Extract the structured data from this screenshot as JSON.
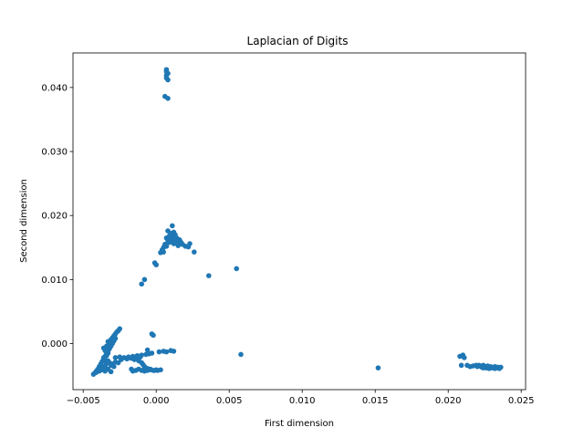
{
  "chart_data": {
    "type": "scatter",
    "title": "Laplacian of Digits",
    "xlabel": "First dimension",
    "ylabel": "Second dimension",
    "xlim": [
      -0.0057,
      0.0253
    ],
    "ylim": [
      -0.0072,
      0.0454
    ],
    "xticks": [
      -0.005,
      0.0,
      0.005,
      0.01,
      0.015,
      0.02,
      0.025
    ],
    "xtick_labels": [
      "−0.005",
      "0.000",
      "0.005",
      "0.010",
      "0.015",
      "0.020",
      "0.025"
    ],
    "yticks": [
      0.0,
      0.01,
      0.02,
      0.03,
      0.04
    ],
    "ytick_labels": [
      "0.000",
      "0.010",
      "0.020",
      "0.030",
      "0.040"
    ],
    "grid": false,
    "color": "#1f77b4",
    "points": [
      [
        0.0007,
        0.0428
      ],
      [
        0.0007,
        0.0425
      ],
      [
        0.0008,
        0.0422
      ],
      [
        0.0007,
        0.0419
      ],
      [
        0.0007,
        0.0415
      ],
      [
        0.0008,
        0.0412
      ],
      [
        0.0006,
        0.0386
      ],
      [
        0.0008,
        0.0383
      ],
      [
        0.0011,
        0.0184
      ],
      [
        0.0008,
        0.0176
      ],
      [
        0.001,
        0.0172
      ],
      [
        0.0012,
        0.0174
      ],
      [
        0.0013,
        0.017
      ],
      [
        0.0011,
        0.0168
      ],
      [
        0.0014,
        0.0165
      ],
      [
        0.0016,
        0.0162
      ],
      [
        0.0015,
        0.0159
      ],
      [
        0.0018,
        0.0155
      ],
      [
        0.0013,
        0.016
      ],
      [
        0.0012,
        0.0156
      ],
      [
        0.001,
        0.0162
      ],
      [
        0.0009,
        0.0158
      ],
      [
        0.0007,
        0.0165
      ],
      [
        0.0008,
        0.016
      ],
      [
        0.0006,
        0.0155
      ],
      [
        0.0005,
        0.015
      ],
      [
        0.0004,
        0.0146
      ],
      [
        0.0003,
        0.0142
      ],
      [
        0.0005,
        0.0143
      ],
      [
        0.0007,
        0.0152
      ],
      [
        0.0009,
        0.0168
      ],
      [
        0.0011,
        0.0165
      ],
      [
        0.0017,
        0.0158
      ],
      [
        0.002,
        0.0152
      ],
      [
        0.0023,
        0.0156
      ],
      [
        0.0022,
        0.0151
      ],
      [
        0.0026,
        0.0143
      ],
      [
        0.0015,
        0.0153
      ],
      [
        0.001,
        0.0171
      ],
      [
        0.0012,
        0.0166
      ],
      [
        -0.0001,
        0.0126
      ],
      [
        0.0,
        0.0123
      ],
      [
        -0.0008,
        0.01
      ],
      [
        -0.001,
        0.0093
      ],
      [
        0.0036,
        0.0106
      ],
      [
        0.0055,
        0.0117
      ],
      [
        0.0058,
        -0.0017
      ],
      [
        -0.0043,
        -0.0048
      ],
      [
        -0.0042,
        -0.0046
      ],
      [
        -0.0041,
        -0.0043
      ],
      [
        -0.004,
        -0.004
      ],
      [
        -0.0039,
        -0.0036
      ],
      [
        -0.0038,
        -0.0032
      ],
      [
        -0.0037,
        -0.0028
      ],
      [
        -0.0036,
        -0.0024
      ],
      [
        -0.0035,
        -0.002
      ],
      [
        -0.0034,
        -0.0016
      ],
      [
        -0.0033,
        -0.0012
      ],
      [
        -0.0032,
        -0.0008
      ],
      [
        -0.0031,
        -0.0004
      ],
      [
        -0.003,
        0.0
      ],
      [
        -0.0029,
        0.0004
      ],
      [
        -0.0028,
        0.0008
      ],
      [
        -0.0029,
        0.0012
      ],
      [
        -0.0028,
        0.0015
      ],
      [
        -0.0027,
        0.0018
      ],
      [
        -0.0026,
        0.002
      ],
      [
        -0.0025,
        0.0023
      ],
      [
        -0.0041,
        -0.0045
      ],
      [
        -0.0039,
        -0.0043
      ],
      [
        -0.0037,
        -0.0041
      ],
      [
        -0.0036,
        -0.0038
      ],
      [
        -0.0035,
        -0.0035
      ],
      [
        -0.0034,
        -0.0031
      ],
      [
        -0.0033,
        -0.0027
      ],
      [
        -0.0035,
        -0.0026
      ],
      [
        -0.0036,
        -0.0022
      ],
      [
        -0.0034,
        -0.0019
      ],
      [
        -0.0033,
        -0.0015
      ],
      [
        -0.0035,
        -0.0011
      ],
      [
        -0.0036,
        -0.0007
      ],
      [
        -0.0034,
        -0.0004
      ],
      [
        -0.0032,
        -0.0001
      ],
      [
        -0.0033,
        0.0003
      ],
      [
        -0.0031,
        0.0006
      ],
      [
        -0.003,
        0.0009
      ],
      [
        -0.0032,
        -0.003
      ],
      [
        -0.003,
        -0.0032
      ],
      [
        -0.0028,
        -0.0029
      ],
      [
        -0.0026,
        -0.003
      ],
      [
        -0.0031,
        -0.0034
      ],
      [
        -0.0029,
        -0.0036
      ],
      [
        -0.0033,
        -0.004
      ],
      [
        -0.0031,
        -0.0044
      ],
      [
        -0.0035,
        -0.0043
      ],
      [
        -0.0038,
        -0.0038
      ],
      [
        -0.0028,
        -0.0022
      ],
      [
        -0.0025,
        -0.0021
      ],
      [
        -0.0022,
        -0.0022
      ],
      [
        -0.0019,
        -0.0021
      ],
      [
        -0.0016,
        -0.002
      ],
      [
        -0.0013,
        -0.0019
      ],
      [
        -0.001,
        -0.0018
      ],
      [
        -0.0007,
        -0.0017
      ],
      [
        -0.0005,
        -0.0016
      ],
      [
        -0.0003,
        -0.0015
      ],
      [
        -0.0024,
        -0.0025
      ],
      [
        -0.002,
        -0.0024
      ],
      [
        -0.0017,
        -0.0023
      ],
      [
        -0.0014,
        -0.0022
      ],
      [
        -0.0011,
        -0.0021
      ],
      [
        -0.0015,
        -0.0025
      ],
      [
        -0.0012,
        -0.0027
      ],
      [
        -0.001,
        -0.003
      ],
      [
        -0.0009,
        -0.0033
      ],
      [
        -0.0008,
        -0.0036
      ],
      [
        -0.0006,
        -0.0039
      ],
      [
        -0.0004,
        -0.0041
      ],
      [
        -0.0002,
        -0.0042
      ],
      [
        0.0,
        -0.0041
      ],
      [
        0.0003,
        -0.0041
      ],
      [
        -0.0017,
        -0.004
      ],
      [
        -0.0016,
        -0.0043
      ],
      [
        -0.0014,
        -0.0042
      ],
      [
        -0.0012,
        -0.004
      ],
      [
        -0.001,
        -0.0042
      ],
      [
        -0.0008,
        -0.0043
      ],
      [
        -0.0006,
        -0.0042
      ],
      [
        -0.0004,
        -0.004
      ],
      [
        -0.0001,
        -0.0042
      ],
      [
        0.0001,
        -0.0042
      ],
      [
        -0.0003,
        0.0015
      ],
      [
        -0.0002,
        0.0013
      ],
      [
        0.0002,
        -0.0013
      ],
      [
        0.0005,
        -0.0012
      ],
      [
        0.0007,
        -0.0013
      ],
      [
        0.001,
        -0.0011
      ],
      [
        0.0012,
        -0.0012
      ],
      [
        -0.0006,
        -0.001
      ],
      [
        0.0152,
        -0.0038
      ],
      [
        0.0208,
        -0.002
      ],
      [
        0.021,
        -0.0018
      ],
      [
        0.0211,
        -0.0022
      ],
      [
        0.0209,
        -0.0034
      ],
      [
        0.0213,
        -0.0034
      ],
      [
        0.0215,
        -0.0036
      ],
      [
        0.0217,
        -0.0035
      ],
      [
        0.0219,
        -0.0034
      ],
      [
        0.022,
        -0.0036
      ],
      [
        0.0222,
        -0.0035
      ],
      [
        0.0223,
        -0.0037
      ],
      [
        0.0224,
        -0.0034
      ],
      [
        0.0225,
        -0.0036
      ],
      [
        0.0226,
        -0.0038
      ],
      [
        0.0227,
        -0.0035
      ],
      [
        0.0228,
        -0.0037
      ],
      [
        0.0229,
        -0.0036
      ],
      [
        0.023,
        -0.0038
      ],
      [
        0.0231,
        -0.0037
      ],
      [
        0.0232,
        -0.0036
      ],
      [
        0.0233,
        -0.0038
      ],
      [
        0.0234,
        -0.0037
      ],
      [
        0.0235,
        -0.0039
      ],
      [
        0.0236,
        -0.0037
      ],
      [
        0.0221,
        -0.0034
      ],
      [
        0.0224,
        -0.0038
      ],
      [
        0.0228,
        -0.0039
      ],
      [
        0.0232,
        -0.0039
      ],
      [
        0.0226,
        -0.0036
      ]
    ]
  }
}
